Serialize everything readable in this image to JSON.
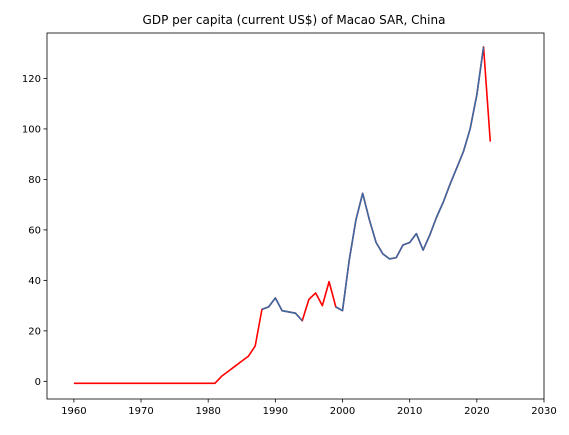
{
  "chart_data": {
    "type": "line",
    "title": "GDP per capita (current US$) of Macao SAR, China",
    "xlabel": "",
    "ylabel": "",
    "xlim": [
      1956,
      2030
    ],
    "ylim": [
      -7,
      138
    ],
    "xticks": [
      1960,
      1970,
      1980,
      1990,
      2000,
      2010,
      2020,
      2030
    ],
    "yticks": [
      0,
      20,
      40,
      60,
      80,
      100,
      120
    ],
    "grid": false,
    "legend": "none",
    "series": [
      {
        "color": "#ff0000",
        "points": [
          [
            1960,
            -0.8
          ],
          [
            1961,
            -0.8
          ],
          [
            1965,
            -0.8
          ],
          [
            1970,
            -0.8
          ],
          [
            1975,
            -0.8
          ],
          [
            1980,
            -0.8
          ],
          [
            1981,
            -0.8
          ],
          [
            1982,
            2
          ],
          [
            1983,
            4
          ],
          [
            1984,
            6
          ],
          [
            1985,
            8
          ],
          [
            1986,
            10
          ],
          [
            1987,
            14
          ],
          [
            1988,
            28.5
          ],
          [
            1989,
            29.5
          ],
          [
            1990,
            33
          ],
          [
            1991,
            28
          ],
          [
            1992,
            27.5
          ],
          [
            1993,
            27
          ],
          [
            1994,
            24
          ],
          [
            1995,
            32.5
          ],
          [
            1996,
            35
          ],
          [
            1997,
            30
          ],
          [
            1998,
            39.5
          ],
          [
            1999,
            29.5
          ],
          [
            2000,
            28
          ],
          [
            2001,
            48
          ],
          [
            2002,
            64
          ],
          [
            2003,
            74.5
          ],
          [
            2004,
            64
          ],
          [
            2005,
            55
          ],
          [
            2006,
            50.5
          ],
          [
            2007,
            48.5
          ],
          [
            2008,
            49
          ],
          [
            2009,
            54
          ],
          [
            2010,
            55
          ],
          [
            2011,
            58.5
          ],
          [
            2012,
            52
          ],
          [
            2013,
            58
          ],
          [
            2014,
            65
          ],
          [
            2015,
            71
          ],
          [
            2016,
            78
          ],
          [
            2017,
            84.5
          ],
          [
            2018,
            91
          ],
          [
            2019,
            100
          ],
          [
            2020,
            113.5
          ],
          [
            2021,
            132.5
          ],
          [
            2022,
            95
          ]
        ]
      },
      {
        "color": "#3a6aa4",
        "segments": [
          [
            [
              1988,
              28.5
            ],
            [
              1989,
              29.5
            ],
            [
              1990,
              33
            ],
            [
              1991,
              28
            ],
            [
              1992,
              27.5
            ],
            [
              1993,
              27
            ],
            [
              1994,
              24
            ]
          ],
          [
            [
              1999,
              29.5
            ],
            [
              2000,
              28
            ],
            [
              2001,
              48
            ],
            [
              2002,
              64
            ],
            [
              2003,
              74.5
            ],
            [
              2004,
              64
            ],
            [
              2005,
              55
            ],
            [
              2006,
              50.5
            ],
            [
              2007,
              48.5
            ],
            [
              2008,
              49
            ],
            [
              2009,
              54
            ],
            [
              2010,
              55
            ],
            [
              2011,
              58.5
            ],
            [
              2012,
              52
            ],
            [
              2013,
              58
            ],
            [
              2014,
              65
            ],
            [
              2015,
              71
            ],
            [
              2016,
              78
            ],
            [
              2017,
              84.5
            ],
            [
              2018,
              91
            ],
            [
              2019,
              100
            ],
            [
              2020,
              113.5
            ],
            [
              2021,
              132.5
            ]
          ]
        ]
      }
    ]
  }
}
